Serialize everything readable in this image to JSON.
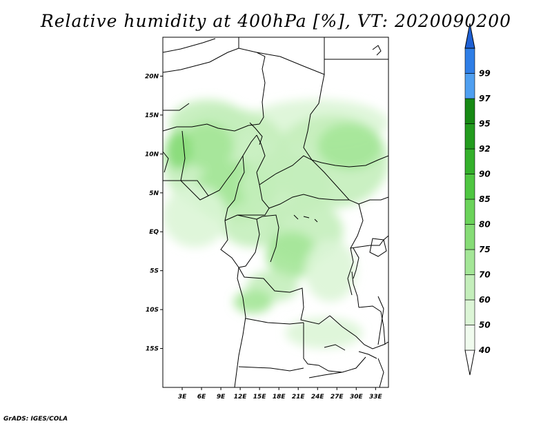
{
  "title": "Relative humidity at 400hPa [%], VT: 2020090200",
  "credit": "GrADS: IGES/COLA",
  "map": {
    "projection": "lat-lon",
    "lon_range": [
      0,
      35
    ],
    "lat_range": [
      -20,
      25
    ],
    "lon_ticks": [
      {
        "v": 3,
        "label": "3E"
      },
      {
        "v": 6,
        "label": "6E"
      },
      {
        "v": 9,
        "label": "9E"
      },
      {
        "v": 12,
        "label": "12E"
      },
      {
        "v": 15,
        "label": "15E"
      },
      {
        "v": 18,
        "label": "18E"
      },
      {
        "v": 21,
        "label": "21E"
      },
      {
        "v": 24,
        "label": "24E"
      },
      {
        "v": 27,
        "label": "27E"
      },
      {
        "v": 30,
        "label": "30E"
      },
      {
        "v": 33,
        "label": "33E"
      }
    ],
    "lat_ticks": [
      {
        "v": 20,
        "label": "20N"
      },
      {
        "v": 15,
        "label": "15N"
      },
      {
        "v": 10,
        "label": "10N"
      },
      {
        "v": 5,
        "label": "5N"
      },
      {
        "v": 0,
        "label": "EQ"
      },
      {
        "v": -5,
        "label": "5S"
      },
      {
        "v": -10,
        "label": "10S"
      },
      {
        "v": -15,
        "label": "15S"
      }
    ]
  },
  "colorbar": {
    "levels": [
      {
        "label": "40",
        "color": "#f0fbee"
      },
      {
        "label": "50",
        "color": "#dcf5d6"
      },
      {
        "label": "60",
        "color": "#c4eebb"
      },
      {
        "label": "70",
        "color": "#a4e697"
      },
      {
        "label": "75",
        "color": "#86dc76"
      },
      {
        "label": "80",
        "color": "#6bd35a"
      },
      {
        "label": "85",
        "color": "#4fc641"
      },
      {
        "label": "90",
        "color": "#34b02b"
      },
      {
        "label": "92",
        "color": "#239b1e"
      },
      {
        "label": "95",
        "color": "#178914"
      },
      {
        "label": "97",
        "color": "#4f9ff0"
      },
      {
        "label": "99",
        "color": "#2f7ee6"
      }
    ],
    "top_color": "#1e60d4",
    "bottom_color": "#ffffff"
  },
  "humidity_regions": [
    {
      "lon": 7,
      "lat": 14,
      "rx": 6,
      "ry": 3,
      "level": 1
    },
    {
      "lon": 24,
      "lat": 14,
      "rx": 11,
      "ry": 3,
      "level": 0
    },
    {
      "lon": 10,
      "lat": 9,
      "rx": 10,
      "ry": 7,
      "level": 1
    },
    {
      "lon": 26,
      "lat": 9,
      "rx": 9,
      "ry": 6,
      "level": 1
    },
    {
      "lon": 7,
      "lat": 11,
      "rx": 4,
      "ry": 3,
      "level": 2
    },
    {
      "lon": 2.5,
      "lat": 10.5,
      "rx": 2,
      "ry": 2.5,
      "level": 3
    },
    {
      "lon": 11,
      "lat": 5,
      "rx": 6,
      "ry": 4,
      "level": 2
    },
    {
      "lon": 19,
      "lat": 6,
      "rx": 7,
      "ry": 4,
      "level": 1
    },
    {
      "lon": 14,
      "lat": 1,
      "rx": 5,
      "ry": 3,
      "level": 1
    },
    {
      "lon": 5,
      "lat": 2,
      "rx": 5,
      "ry": 4,
      "level": 0
    },
    {
      "lon": 29,
      "lat": 11,
      "rx": 5,
      "ry": 3,
      "level": 2
    },
    {
      "lon": 22,
      "lat": 0,
      "rx": 6,
      "ry": 4,
      "level": 1
    },
    {
      "lon": 20,
      "lat": -3,
      "rx": 4,
      "ry": 3,
      "level": 2
    },
    {
      "lon": 17,
      "lat": -7,
      "rx": 4,
      "ry": 2,
      "level": 1
    },
    {
      "lon": 14,
      "lat": -9,
      "rx": 3,
      "ry": 1.5,
      "level": 2
    },
    {
      "lon": 26,
      "lat": -5,
      "rx": 4,
      "ry": 4,
      "level": 0
    },
    {
      "lon": 25,
      "lat": -13,
      "rx": 6,
      "ry": 2,
      "level": 0
    }
  ]
}
